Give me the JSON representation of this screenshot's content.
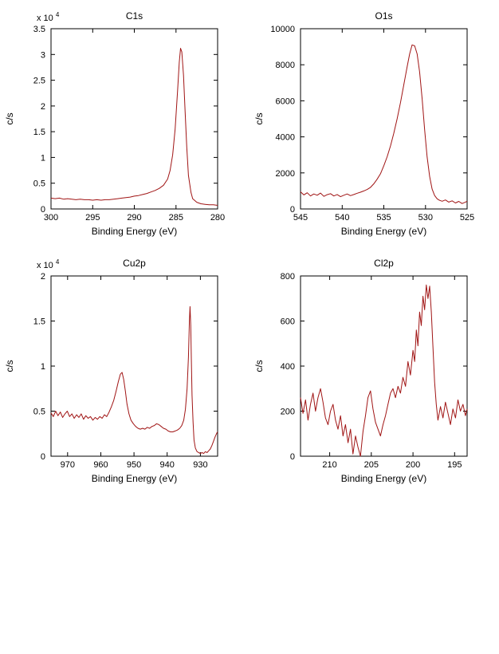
{
  "page": {
    "background": "#ffffff"
  },
  "chart_data": [
    {
      "id": "c1s",
      "type": "line",
      "title": "C1s",
      "xlabel": "Binding Energy (eV)",
      "ylabel": "c/s",
      "y_multiplier": {
        "base": "x 10",
        "exp": "4"
      },
      "xlim": [
        300,
        280
      ],
      "ylim": [
        0,
        3.5
      ],
      "x_ticks": [
        300,
        295,
        290,
        285,
        280
      ],
      "y_ticks": [
        0,
        0.5,
        1,
        1.5,
        2,
        2.5,
        3,
        3.5
      ],
      "line_color": "#a01414",
      "grid": false,
      "points": [
        [
          300,
          0.21
        ],
        [
          299.5,
          0.2
        ],
        [
          299,
          0.21
        ],
        [
          298.5,
          0.19
        ],
        [
          298,
          0.2
        ],
        [
          297.5,
          0.19
        ],
        [
          297,
          0.18
        ],
        [
          296.5,
          0.19
        ],
        [
          296,
          0.18
        ],
        [
          295.5,
          0.18
        ],
        [
          295,
          0.17
        ],
        [
          294.5,
          0.18
        ],
        [
          294,
          0.17
        ],
        [
          293.5,
          0.18
        ],
        [
          293,
          0.18
        ],
        [
          292.5,
          0.19
        ],
        [
          292,
          0.2
        ],
        [
          291.5,
          0.21
        ],
        [
          291,
          0.22
        ],
        [
          290.5,
          0.23
        ],
        [
          290,
          0.25
        ],
        [
          289.5,
          0.26
        ],
        [
          289,
          0.28
        ],
        [
          288.5,
          0.3
        ],
        [
          288,
          0.33
        ],
        [
          287.5,
          0.36
        ],
        [
          287,
          0.4
        ],
        [
          286.5,
          0.46
        ],
        [
          286,
          0.58
        ],
        [
          285.7,
          0.75
        ],
        [
          285.4,
          1.05
        ],
        [
          285.1,
          1.55
        ],
        [
          284.8,
          2.3
        ],
        [
          284.6,
          2.85
        ],
        [
          284.45,
          3.12
        ],
        [
          284.3,
          3.05
        ],
        [
          284.1,
          2.6
        ],
        [
          283.9,
          1.9
        ],
        [
          283.7,
          1.2
        ],
        [
          283.5,
          0.65
        ],
        [
          283.2,
          0.32
        ],
        [
          283,
          0.2
        ],
        [
          282.5,
          0.13
        ],
        [
          282,
          0.1
        ],
        [
          281.5,
          0.09
        ],
        [
          281,
          0.08
        ],
        [
          280.5,
          0.08
        ],
        [
          280,
          0.07
        ]
      ]
    },
    {
      "id": "o1s",
      "type": "line",
      "title": "O1s",
      "xlabel": "Binding Energy (eV)",
      "ylabel": "c/s",
      "xlim": [
        545,
        525
      ],
      "ylim": [
        0,
        10000
      ],
      "x_ticks": [
        545,
        540,
        535,
        530,
        525
      ],
      "y_ticks": [
        0,
        2000,
        4000,
        6000,
        8000,
        10000
      ],
      "line_color": "#a01414",
      "grid": false,
      "points": [
        [
          545,
          950
        ],
        [
          544.6,
          780
        ],
        [
          544.2,
          900
        ],
        [
          543.8,
          720
        ],
        [
          543.4,
          830
        ],
        [
          543,
          760
        ],
        [
          542.6,
          880
        ],
        [
          542.2,
          700
        ],
        [
          541.8,
          790
        ],
        [
          541.4,
          850
        ],
        [
          541,
          720
        ],
        [
          540.6,
          800
        ],
        [
          540.2,
          680
        ],
        [
          539.8,
          760
        ],
        [
          539.4,
          830
        ],
        [
          539,
          740
        ],
        [
          538.6,
          800
        ],
        [
          538.2,
          870
        ],
        [
          537.8,
          930
        ],
        [
          537.4,
          1000
        ],
        [
          537,
          1080
        ],
        [
          536.6,
          1200
        ],
        [
          536.2,
          1400
        ],
        [
          535.8,
          1650
        ],
        [
          535.4,
          1950
        ],
        [
          535,
          2400
        ],
        [
          534.6,
          2900
        ],
        [
          534.2,
          3500
        ],
        [
          533.8,
          4200
        ],
        [
          533.4,
          5000
        ],
        [
          533,
          5900
        ],
        [
          532.6,
          6900
        ],
        [
          532.2,
          7900
        ],
        [
          531.9,
          8600
        ],
        [
          531.6,
          9100
        ],
        [
          531.3,
          9050
        ],
        [
          531,
          8600
        ],
        [
          530.7,
          7600
        ],
        [
          530.4,
          6100
        ],
        [
          530.1,
          4400
        ],
        [
          529.8,
          2900
        ],
        [
          529.5,
          1800
        ],
        [
          529.2,
          1100
        ],
        [
          528.9,
          750
        ],
        [
          528.6,
          560
        ],
        [
          528.3,
          480
        ],
        [
          528,
          430
        ],
        [
          527.6,
          500
        ],
        [
          527.2,
          380
        ],
        [
          526.8,
          450
        ],
        [
          526.4,
          330
        ],
        [
          526,
          420
        ],
        [
          525.6,
          300
        ],
        [
          525.2,
          380
        ],
        [
          525,
          430
        ]
      ]
    },
    {
      "id": "cu2p",
      "type": "line",
      "title": "Cu2p",
      "xlabel": "Binding Energy (eV)",
      "ylabel": "c/s",
      "y_multiplier": {
        "base": "x 10",
        "exp": "4"
      },
      "xlim": [
        975,
        924.8
      ],
      "ylim": [
        0,
        2
      ],
      "x_ticks": [
        970,
        960,
        950,
        940,
        930
      ],
      "y_ticks": [
        0,
        0.5,
        1,
        1.5,
        2
      ],
      "line_color": "#a01414",
      "grid": false,
      "points": [
        [
          975,
          0.48
        ],
        [
          974.3,
          0.44
        ],
        [
          973.6,
          0.5
        ],
        [
          972.9,
          0.45
        ],
        [
          972.2,
          0.49
        ],
        [
          971.5,
          0.43
        ],
        [
          970.8,
          0.47
        ],
        [
          970.1,
          0.5
        ],
        [
          969.4,
          0.44
        ],
        [
          968.7,
          0.47
        ],
        [
          968,
          0.42
        ],
        [
          967.3,
          0.46
        ],
        [
          966.6,
          0.43
        ],
        [
          965.9,
          0.47
        ],
        [
          965.2,
          0.41
        ],
        [
          964.5,
          0.45
        ],
        [
          963.8,
          0.42
        ],
        [
          963.1,
          0.44
        ],
        [
          962.4,
          0.4
        ],
        [
          961.7,
          0.43
        ],
        [
          961,
          0.41
        ],
        [
          960.3,
          0.44
        ],
        [
          959.6,
          0.42
        ],
        [
          958.9,
          0.46
        ],
        [
          958.2,
          0.44
        ],
        [
          957.5,
          0.49
        ],
        [
          956.8,
          0.55
        ],
        [
          956.1,
          0.62
        ],
        [
          955.4,
          0.72
        ],
        [
          954.7,
          0.83
        ],
        [
          954.1,
          0.91
        ],
        [
          953.6,
          0.93
        ],
        [
          953.1,
          0.85
        ],
        [
          952.6,
          0.72
        ],
        [
          952.1,
          0.58
        ],
        [
          951.5,
          0.47
        ],
        [
          950.9,
          0.4
        ],
        [
          950.2,
          0.36
        ],
        [
          949.5,
          0.33
        ],
        [
          948.8,
          0.31
        ],
        [
          948.1,
          0.3
        ],
        [
          947.4,
          0.31
        ],
        [
          946.7,
          0.3
        ],
        [
          946,
          0.32
        ],
        [
          945.3,
          0.31
        ],
        [
          944.6,
          0.33
        ],
        [
          943.9,
          0.34
        ],
        [
          943.2,
          0.36
        ],
        [
          942.5,
          0.35
        ],
        [
          941.8,
          0.33
        ],
        [
          941.1,
          0.31
        ],
        [
          940.4,
          0.3
        ],
        [
          939.7,
          0.28
        ],
        [
          939,
          0.27
        ],
        [
          938.3,
          0.27
        ],
        [
          937.6,
          0.28
        ],
        [
          936.9,
          0.29
        ],
        [
          936.2,
          0.31
        ],
        [
          935.6,
          0.34
        ],
        [
          935,
          0.4
        ],
        [
          934.5,
          0.52
        ],
        [
          934,
          0.75
        ],
        [
          933.6,
          1.1
        ],
        [
          933.3,
          1.5
        ],
        [
          933.1,
          1.66
        ],
        [
          932.9,
          1.45
        ],
        [
          932.7,
          1.05
        ],
        [
          932.5,
          0.68
        ],
        [
          932.2,
          0.38
        ],
        [
          931.9,
          0.18
        ],
        [
          931.5,
          0.09
        ],
        [
          931,
          0.05
        ],
        [
          930.5,
          0.04
        ],
        [
          930,
          0.03
        ],
        [
          929.5,
          0.04
        ],
        [
          929,
          0.03
        ],
        [
          928.5,
          0.05
        ],
        [
          928,
          0.04
        ],
        [
          927.5,
          0.06
        ],
        [
          927,
          0.08
        ],
        [
          926.5,
          0.12
        ],
        [
          926,
          0.17
        ],
        [
          925.5,
          0.22
        ],
        [
          925,
          0.26
        ],
        [
          924.8,
          0.27
        ]
      ]
    },
    {
      "id": "cl2p",
      "type": "line",
      "title": "Cl2p",
      "xlabel": "Binding Energy (eV)",
      "ylabel": "c/s",
      "xlim": [
        213.5,
        193.5
      ],
      "ylim": [
        0,
        800
      ],
      "x_ticks": [
        210,
        205,
        200,
        195
      ],
      "y_ticks": [
        0,
        200,
        400,
        600,
        800
      ],
      "line_color": "#a01414",
      "grid": false,
      "points": [
        [
          213.5,
          260
        ],
        [
          213.2,
          190
        ],
        [
          212.9,
          250
        ],
        [
          212.6,
          160
        ],
        [
          212.3,
          230
        ],
        [
          212,
          280
        ],
        [
          211.7,
          200
        ],
        [
          211.4,
          260
        ],
        [
          211.1,
          300
        ],
        [
          210.8,
          240
        ],
        [
          210.5,
          170
        ],
        [
          210.2,
          140
        ],
        [
          209.9,
          200
        ],
        [
          209.6,
          230
        ],
        [
          209.3,
          160
        ],
        [
          209,
          120
        ],
        [
          208.7,
          180
        ],
        [
          208.4,
          90
        ],
        [
          208.1,
          140
        ],
        [
          207.8,
          60
        ],
        [
          207.5,
          120
        ],
        [
          207.2,
          10
        ],
        [
          206.9,
          90
        ],
        [
          206.6,
          40
        ],
        [
          206.3,
          0
        ],
        [
          206,
          110
        ],
        [
          205.7,
          180
        ],
        [
          205.4,
          260
        ],
        [
          205.1,
          290
        ],
        [
          204.8,
          210
        ],
        [
          204.5,
          150
        ],
        [
          204.2,
          120
        ],
        [
          203.9,
          90
        ],
        [
          203.6,
          140
        ],
        [
          203.3,
          180
        ],
        [
          203,
          230
        ],
        [
          202.7,
          280
        ],
        [
          202.4,
          300
        ],
        [
          202.1,
          260
        ],
        [
          201.8,
          310
        ],
        [
          201.5,
          280
        ],
        [
          201.2,
          350
        ],
        [
          200.9,
          310
        ],
        [
          200.6,
          420
        ],
        [
          200.3,
          360
        ],
        [
          200,
          470
        ],
        [
          199.8,
          420
        ],
        [
          199.6,
          560
        ],
        [
          199.4,
          490
        ],
        [
          199.2,
          640
        ],
        [
          199,
          580
        ],
        [
          198.8,
          710
        ],
        [
          198.6,
          650
        ],
        [
          198.4,
          760
        ],
        [
          198.2,
          700
        ],
        [
          198,
          755
        ],
        [
          197.8,
          640
        ],
        [
          197.6,
          480
        ],
        [
          197.4,
          330
        ],
        [
          197.2,
          230
        ],
        [
          197,
          160
        ],
        [
          196.7,
          220
        ],
        [
          196.4,
          170
        ],
        [
          196.1,
          240
        ],
        [
          195.8,
          190
        ],
        [
          195.5,
          140
        ],
        [
          195.2,
          210
        ],
        [
          194.9,
          170
        ],
        [
          194.6,
          250
        ],
        [
          194.3,
          200
        ],
        [
          194,
          230
        ],
        [
          193.7,
          180
        ],
        [
          193.5,
          210
        ]
      ]
    }
  ]
}
